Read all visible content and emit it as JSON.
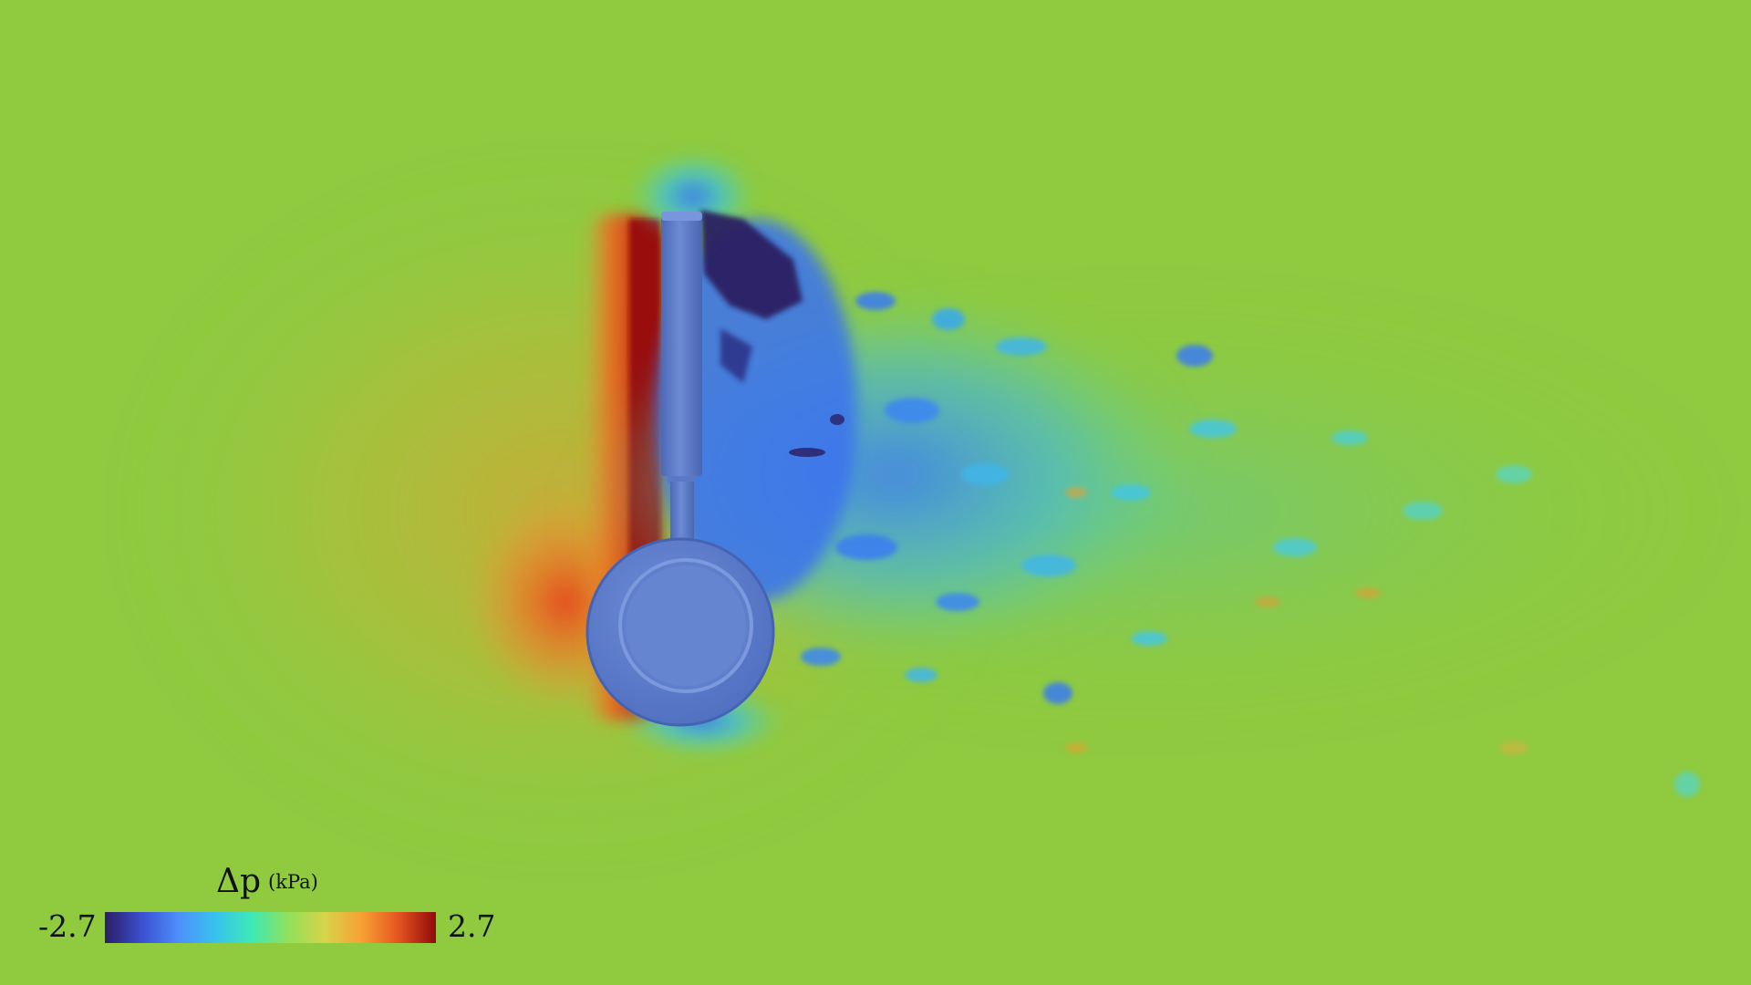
{
  "legend": {
    "symbol": "Δp",
    "unit": "(kPa)",
    "min_label": "-2.7",
    "max_label": "2.7",
    "colormap": [
      "#2b1e63",
      "#3a4fd0",
      "#4d8ffb",
      "#38c2ef",
      "#3ee9b6",
      "#93e05a",
      "#d8d34a",
      "#f7a032",
      "#e4521e",
      "#8e0a0a"
    ]
  },
  "colors": {
    "background": "#8fca3f",
    "body": "#5b7cc9",
    "high_pressure": "#c4260f",
    "low_pressure": "#2a1c5e"
  }
}
